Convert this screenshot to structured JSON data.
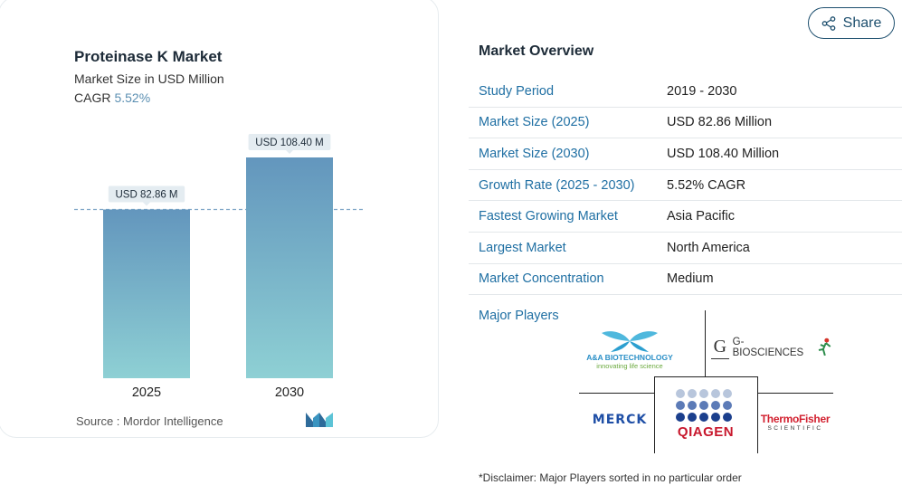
{
  "chart_data": {
    "type": "bar",
    "title": "Proteinase K Market",
    "subtitle": "Market Size in USD Million",
    "cagr_label": "CAGR",
    "cagr_value": "5.52%",
    "categories": [
      "2025",
      "2030"
    ],
    "values": [
      82.86,
      108.4
    ],
    "data_labels": [
      "USD 82.86 M",
      "USD 108.40 M"
    ],
    "xlabel": "",
    "ylabel": "",
    "ylim": [
      0,
      108.4
    ],
    "grid": false,
    "reference_line_value": 82.86,
    "colors": {
      "bar_top": "#6396bd",
      "bar_bottom": "#8ed0d4",
      "ref_line": "#7fa6c6",
      "label_bg": "#e4ecf1"
    }
  },
  "source": {
    "label": "Source :",
    "value": "Mordor Intelligence"
  },
  "share": {
    "label": "Share",
    "icon": "share-icon"
  },
  "overview": {
    "title": "Market Overview",
    "rows": [
      {
        "label": "Study Period",
        "value": "2019 - 2030"
      },
      {
        "label": "Market Size (2025)",
        "value": "USD 82.86 Million"
      },
      {
        "label": "Market Size (2030)",
        "value": "USD 108.40 Million"
      },
      {
        "label": "Growth Rate (2025 - 2030)",
        "value": "5.52% CAGR"
      },
      {
        "label": "Fastest Growing Market",
        "value": "Asia Pacific"
      },
      {
        "label": "Largest Market",
        "value": "North America"
      },
      {
        "label": "Market Concentration",
        "value": "Medium"
      }
    ]
  },
  "major_players": {
    "label": "Major Players",
    "logos": {
      "aa": {
        "name": "A&A BIOTECHNOLOGY",
        "tagline": "innovating life science"
      },
      "gbio": {
        "name": "G-BIOSCIENCES"
      },
      "merck": {
        "name": "MERCK"
      },
      "qiagen": {
        "name": "QIAGEN"
      },
      "thermo": {
        "name": "ThermoFisher",
        "sub": "SCIENTIFIC"
      }
    }
  },
  "disclaimer": "*Disclaimer: Major Players sorted in no particular order"
}
